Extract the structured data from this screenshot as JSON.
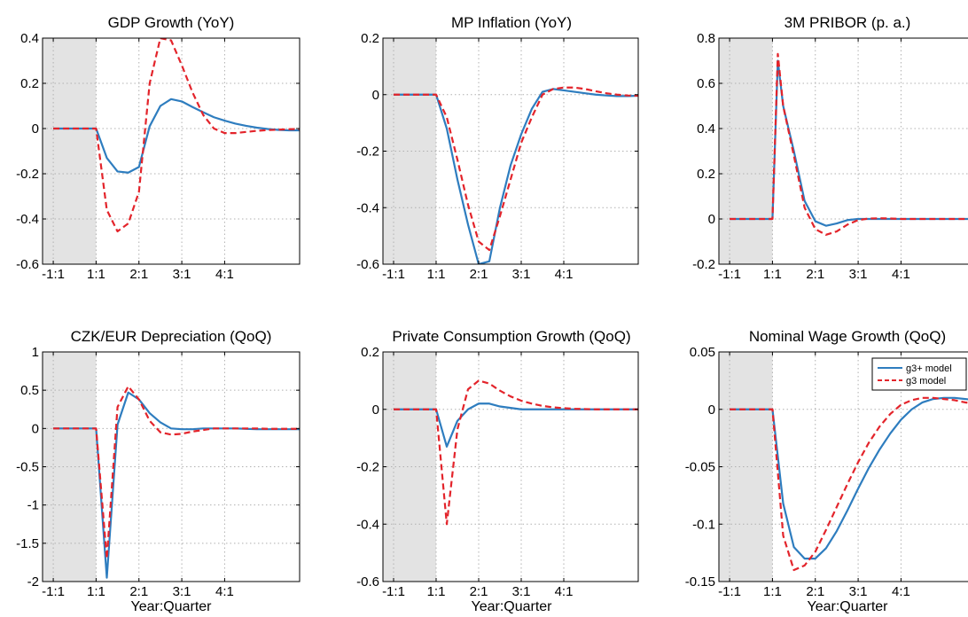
{
  "colors": {
    "shade": "#e3e3e3",
    "grid": "#b0b0b0",
    "series_solid": "#2e7dbf",
    "series_dashed": "#e3242b"
  },
  "legend": {
    "position": "top-right",
    "entries": [
      "g3+ model",
      "g3 model"
    ]
  },
  "chart_data": [
    {
      "type": "line",
      "title": "GDP Growth (YoY)",
      "xlabel": "",
      "ylim": [
        -0.6,
        0.4
      ],
      "yticks": [
        -0.6,
        -0.4,
        -0.2,
        0,
        0.2,
        0.4
      ],
      "ytick_labels": [
        "-0.6",
        "-0.4",
        "-0.2",
        "0",
        "0.2",
        "0.4"
      ],
      "xlim": [
        -5,
        19
      ],
      "xticks": [
        -4,
        0,
        4,
        8,
        12
      ],
      "xtick_labels": [
        "-1:1",
        "1:1",
        "2:1",
        "3:1",
        "4:1"
      ],
      "shaded_x": [
        -5,
        0
      ],
      "grid": true,
      "series": [
        {
          "name": "g3+ model",
          "style": "solid",
          "x": [
            -4,
            -3,
            -2,
            -1,
            0,
            1,
            2,
            3,
            4,
            5,
            6,
            7,
            8,
            9,
            10,
            11,
            12,
            13,
            14,
            15,
            16,
            17,
            18,
            19
          ],
          "y": [
            0,
            0,
            0,
            0,
            0,
            -0.13,
            -0.19,
            -0.195,
            -0.17,
            0.01,
            0.1,
            0.13,
            0.12,
            0.095,
            0.072,
            0.05,
            0.035,
            0.022,
            0.012,
            0.004,
            -0.002,
            -0.006,
            -0.008,
            -0.008
          ]
        },
        {
          "name": "g3 model",
          "style": "dashed",
          "x": [
            -4,
            -3,
            -2,
            -1,
            0,
            1,
            2,
            3,
            4,
            5,
            6,
            7,
            8,
            9,
            10,
            11,
            12,
            13,
            14,
            15,
            16,
            17,
            18,
            19
          ],
          "y": [
            0,
            0,
            0,
            0,
            0,
            -0.36,
            -0.455,
            -0.42,
            -0.28,
            0.2,
            0.4,
            0.39,
            0.28,
            0.16,
            0.06,
            0.0,
            -0.02,
            -0.02,
            -0.015,
            -0.01,
            -0.007,
            -0.005,
            -0.003,
            -0.002
          ]
        }
      ]
    },
    {
      "type": "line",
      "title": "MP Inflation (YoY)",
      "xlabel": "",
      "ylim": [
        -0.6,
        0.2
      ],
      "yticks": [
        -0.6,
        -0.4,
        -0.2,
        0,
        0.2
      ],
      "ytick_labels": [
        "-0.6",
        "-0.4",
        "-0.2",
        "0",
        "0.2"
      ],
      "xlim": [
        -5,
        19
      ],
      "xticks": [
        -4,
        0,
        4,
        8,
        12
      ],
      "xtick_labels": [
        "-1:1",
        "1:1",
        "2:1",
        "3:1",
        "4:1"
      ],
      "shaded_x": [
        -5,
        0
      ],
      "grid": true,
      "series": [
        {
          "name": "g3+ model",
          "style": "solid",
          "x": [
            -4,
            -3,
            -2,
            -1,
            0,
            1,
            2,
            3,
            4,
            5,
            6,
            7,
            8,
            9,
            10,
            11,
            12,
            13,
            14,
            15,
            16,
            17,
            18,
            19
          ],
          "y": [
            0,
            0,
            0,
            0,
            0,
            -0.12,
            -0.3,
            -0.46,
            -0.6,
            -0.59,
            -0.4,
            -0.25,
            -0.14,
            -0.05,
            0.01,
            0.02,
            0.015,
            0.01,
            0.005,
            0.0,
            -0.003,
            -0.005,
            -0.005,
            -0.004
          ]
        },
        {
          "name": "g3 model",
          "style": "dashed",
          "x": [
            -4,
            -3,
            -2,
            -1,
            0,
            1,
            2,
            3,
            4,
            5,
            6,
            7,
            8,
            9,
            10,
            11,
            12,
            13,
            14,
            15,
            16,
            17,
            18,
            19
          ],
          "y": [
            0,
            0,
            0,
            0,
            0,
            -0.08,
            -0.23,
            -0.39,
            -0.52,
            -0.55,
            -0.43,
            -0.3,
            -0.17,
            -0.08,
            0.0,
            0.02,
            0.025,
            0.025,
            0.02,
            0.012,
            0.005,
            0.0,
            -0.003,
            -0.004
          ]
        }
      ]
    },
    {
      "type": "line",
      "title": "3M PRIBOR (p. a.)",
      "xlabel": "",
      "ylim": [
        -0.2,
        0.8
      ],
      "yticks": [
        -0.2,
        0,
        0.2,
        0.4,
        0.6,
        0.8
      ],
      "ytick_labels": [
        "-0.2",
        "0",
        "0.2",
        "0.4",
        "0.6",
        "0.8"
      ],
      "xlim": [
        -5,
        19
      ],
      "xticks": [
        -4,
        0,
        4,
        8,
        12
      ],
      "xtick_labels": [
        "-1:1",
        "1:1",
        "2:1",
        "3:1",
        "4:1"
      ],
      "shaded_x": [
        -5,
        0
      ],
      "grid": true,
      "series": [
        {
          "name": "g3+ model",
          "style": "solid",
          "x": [
            -4,
            -3,
            -2,
            -1,
            0,
            0.5,
            1,
            2,
            3,
            4,
            5,
            6,
            7,
            8,
            9,
            10,
            11,
            12,
            13,
            14,
            15,
            16,
            17,
            18,
            19
          ],
          "y": [
            0,
            0,
            0,
            0,
            0,
            0.7,
            0.5,
            0.3,
            0.08,
            -0.01,
            -0.03,
            -0.02,
            -0.005,
            0.0,
            0.0,
            0.0,
            0.0,
            0.0,
            0.0,
            0.0,
            0.0,
            0.0,
            0.0,
            0.0,
            0.0
          ]
        },
        {
          "name": "g3 model",
          "style": "dashed",
          "x": [
            -4,
            -3,
            -2,
            -1,
            0,
            0.5,
            1,
            2,
            3,
            4,
            5,
            6,
            7,
            8,
            9,
            10,
            11,
            12,
            13,
            14,
            15,
            16,
            17,
            18,
            19
          ],
          "y": [
            0,
            0,
            0,
            0,
            0,
            0.73,
            0.5,
            0.28,
            0.05,
            -0.045,
            -0.07,
            -0.055,
            -0.025,
            -0.005,
            0.002,
            0.003,
            0.002,
            0.0,
            0.0,
            0.0,
            0.0,
            0.0,
            0.0,
            0.0,
            0.0
          ]
        }
      ]
    },
    {
      "type": "line",
      "title": "CZK/EUR Depreciation (QoQ)",
      "xlabel": "Year:Quarter",
      "ylim": [
        -2,
        1
      ],
      "yticks": [
        -2,
        -1.5,
        -1,
        -0.5,
        0,
        0.5,
        1
      ],
      "ytick_labels": [
        "-2",
        "-1.5",
        "-1",
        "-0.5",
        "0",
        "0.5",
        "1"
      ],
      "xlim": [
        -5,
        19
      ],
      "xticks": [
        -4,
        0,
        4,
        8,
        12
      ],
      "xtick_labels": [
        "-1:1",
        "1:1",
        "2:1",
        "3:1",
        "4:1"
      ],
      "shaded_x": [
        -5,
        0
      ],
      "grid": true,
      "series": [
        {
          "name": "g3+ model",
          "style": "solid",
          "x": [
            -4,
            -3,
            -2,
            -1,
            0,
            1,
            2,
            3,
            4,
            5,
            6,
            7,
            8,
            9,
            10,
            11,
            12,
            13,
            14,
            15,
            16,
            17,
            18,
            19
          ],
          "y": [
            0,
            0,
            0,
            0,
            0,
            -1.95,
            0.05,
            0.47,
            0.38,
            0.2,
            0.08,
            0.0,
            -0.01,
            -0.01,
            0.0,
            0.0,
            0.0,
            0.0,
            -0.005,
            -0.01,
            -0.01,
            -0.01,
            -0.01,
            -0.01
          ]
        },
        {
          "name": "g3 model",
          "style": "dashed",
          "x": [
            -4,
            -3,
            -2,
            -1,
            0,
            1,
            2,
            3,
            4,
            5,
            6,
            7,
            8,
            9,
            10,
            11,
            12,
            13,
            14,
            15,
            16,
            17,
            18,
            19
          ],
          "y": [
            0,
            0,
            0,
            0,
            0,
            -1.7,
            0.28,
            0.55,
            0.38,
            0.1,
            -0.05,
            -0.08,
            -0.07,
            -0.04,
            -0.02,
            0.0,
            0.0,
            0.0,
            0.0,
            0.0,
            -0.005,
            -0.005,
            -0.005,
            -0.005
          ]
        }
      ]
    },
    {
      "type": "line",
      "title": "Private Consumption Growth (QoQ)",
      "xlabel": "Year:Quarter",
      "ylim": [
        -0.6,
        0.2
      ],
      "yticks": [
        -0.6,
        -0.4,
        -0.2,
        0,
        0.2
      ],
      "ytick_labels": [
        "-0.6",
        "-0.4",
        "-0.2",
        "0",
        "0.2"
      ],
      "xlim": [
        -5,
        19
      ],
      "xticks": [
        -4,
        0,
        4,
        8,
        12
      ],
      "xtick_labels": [
        "-1:1",
        "1:1",
        "2:1",
        "3:1",
        "4:1"
      ],
      "shaded_x": [
        -5,
        0
      ],
      "grid": true,
      "series": [
        {
          "name": "g3+ model",
          "style": "solid",
          "x": [
            -4,
            -3,
            -2,
            -1,
            0,
            1,
            2,
            3,
            4,
            5,
            6,
            7,
            8,
            9,
            10,
            11,
            12,
            13,
            14,
            15,
            16,
            17,
            18,
            19
          ],
          "y": [
            0,
            0,
            0,
            0,
            0,
            -0.13,
            -0.04,
            0.0,
            0.02,
            0.02,
            0.01,
            0.005,
            0.0,
            0.0,
            0.0,
            0.0,
            0.0,
            0.0,
            0.0,
            0.0,
            0.0,
            0.0,
            0.0,
            0.0
          ]
        },
        {
          "name": "g3 model",
          "style": "dashed",
          "x": [
            -4,
            -3,
            -2,
            -1,
            0,
            1,
            2,
            3,
            4,
            5,
            6,
            7,
            8,
            9,
            10,
            11,
            12,
            13,
            14,
            15,
            16,
            17,
            18,
            19
          ],
          "y": [
            0,
            0,
            0,
            0,
            0,
            -0.4,
            -0.07,
            0.07,
            0.1,
            0.09,
            0.065,
            0.045,
            0.03,
            0.02,
            0.012,
            0.007,
            0.004,
            0.002,
            0.001,
            0.0,
            0.0,
            0.0,
            0.0,
            0.0
          ]
        }
      ]
    },
    {
      "type": "line",
      "title": "Nominal Wage Growth (QoQ)",
      "xlabel": "Year:Quarter",
      "ylim": [
        -0.15,
        0.05
      ],
      "yticks": [
        -0.15,
        -0.1,
        -0.05,
        0,
        0.05
      ],
      "ytick_labels": [
        "-0.15",
        "-0.1",
        "-0.05",
        "0",
        "0.05"
      ],
      "xlim": [
        -5,
        19
      ],
      "xticks": [
        -4,
        0,
        4,
        8,
        12
      ],
      "xtick_labels": [
        "-1:1",
        "1:1",
        "2:1",
        "3:1",
        "4:1"
      ],
      "shaded_x": [
        -5,
        0
      ],
      "grid": true,
      "series": [
        {
          "name": "g3+ model",
          "style": "solid",
          "x": [
            -4,
            -3,
            -2,
            -1,
            0,
            1,
            2,
            3,
            4,
            5,
            6,
            7,
            8,
            9,
            10,
            11,
            12,
            13,
            14,
            15,
            16,
            17,
            18,
            19
          ],
          "y": [
            0,
            0,
            0,
            0,
            0,
            -0.082,
            -0.12,
            -0.13,
            -0.13,
            -0.121,
            -0.106,
            -0.088,
            -0.069,
            -0.051,
            -0.035,
            -0.021,
            -0.009,
            0.0,
            0.006,
            0.009,
            0.01,
            0.01,
            0.009,
            0.008
          ]
        },
        {
          "name": "g3 model",
          "style": "dashed",
          "x": [
            -4,
            -3,
            -2,
            -1,
            0,
            1,
            2,
            3,
            4,
            5,
            6,
            7,
            8,
            9,
            10,
            11,
            12,
            13,
            14,
            15,
            16,
            17,
            18,
            19
          ],
          "y": [
            0,
            0,
            0,
            0,
            0,
            -0.11,
            -0.14,
            -0.136,
            -0.124,
            -0.105,
            -0.085,
            -0.065,
            -0.046,
            -0.029,
            -0.015,
            -0.004,
            0.004,
            0.008,
            0.01,
            0.01,
            0.009,
            0.008,
            0.006,
            0.005
          ]
        }
      ]
    }
  ]
}
